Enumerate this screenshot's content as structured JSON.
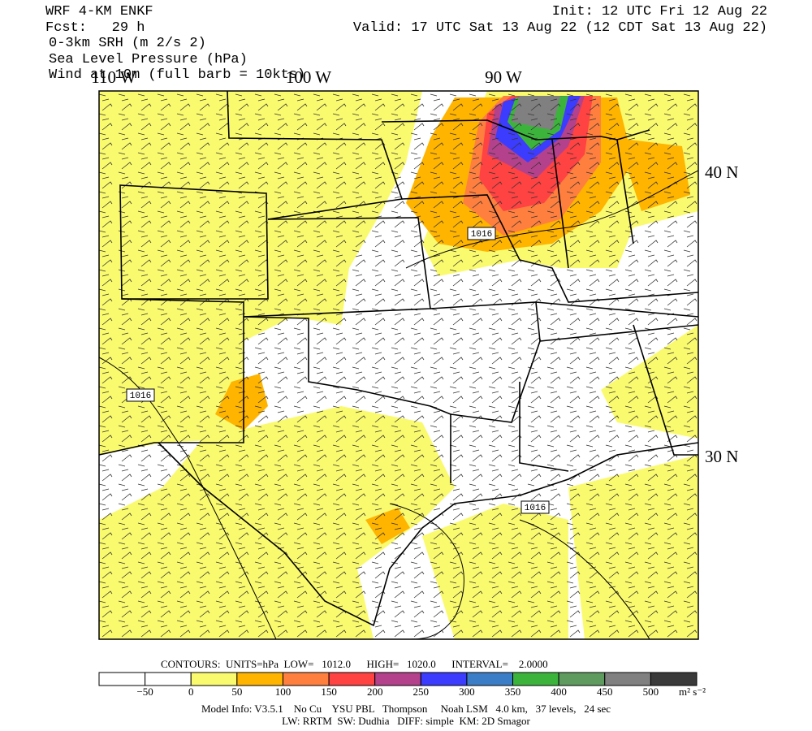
{
  "header": {
    "model": "WRF 4-KM ENKF",
    "forecast": "Fcst:   29 h",
    "field": "0-3km SRH (m 2/s 2)",
    "contours": "Sea Level Pressure (hPa)",
    "wind": "Wind at 10m (full barb = 10kts)",
    "init": "Init: 12 UTC Fri 12 Aug 22",
    "valid": "Valid: 17 UTC Sat 13 Aug 22 (12 CDT Sat 13 Aug 22)"
  },
  "map": {
    "longitudes": [
      "110 W",
      "100 W",
      "90 W"
    ],
    "latitudes": [
      "40 N",
      "30 N"
    ],
    "isobar_labels": [
      "1016",
      "1016",
      "1016"
    ]
  },
  "contour_info": "CONTOURS:  UNITS=hPa  LOW=   1012.0      HIGH=   1020.0      INTERVAL=    2.0000",
  "colorbar": {
    "colors": [
      "#ffffff",
      "#ffffff",
      "#fafa6e",
      "#ffb400",
      "#ff7f3f",
      "#ff4242",
      "#b4418c",
      "#3c3cff",
      "#3c7dc8",
      "#3cb43c",
      "#5f9a5f",
      "#808080",
      "#3a3a3a"
    ],
    "labels": [
      "−50",
      "0",
      "50",
      "100",
      "150",
      "200",
      "250",
      "300",
      "350",
      "400",
      "450",
      "500"
    ],
    "units": "m² s⁻²"
  },
  "footer": {
    "line1": "Model Info: V3.5.1    No Cu    YSU PBL   Thompson     Noah LSM   4.0 km,   37 levels,   24 sec",
    "line2": "LW: RRTM  SW: Dudhia   DIFF: simple  KM: 2D Smagor"
  }
}
